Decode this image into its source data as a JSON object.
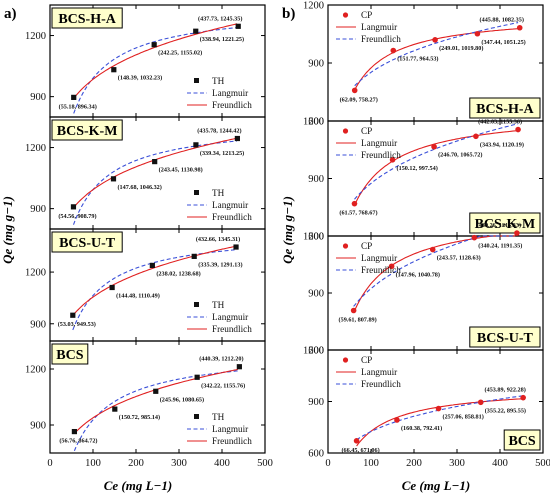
{
  "figure": {
    "panel_a_label": "a)",
    "panel_b_label": "b)",
    "xlabel_a": "Ce (mg L−1)",
    "xlabel_b": "Ce (mg L−1)",
    "ylabel_a": "Qe (mg g−1)",
    "ylabel_b": "Qe (mg g−1)"
  },
  "colors": {
    "langmuir": "#3a4fd8",
    "freundlich": "#e02020",
    "th_marker": "#111111",
    "cp_marker": "#e02020",
    "label_box": "#ffffcc"
  },
  "chart_data": [
    {
      "type": "scatter",
      "column": "a",
      "sample": "BCS-H-A",
      "marker_name": "TH",
      "x": [
        55.18,
        148.39,
        242.25,
        338.94,
        437.73
      ],
      "y": [
        896.34,
        1032.23,
        1155.02,
        1221.25,
        1245.35
      ],
      "point_labels": [
        "(55.18, 896.34)",
        "(148.39, 1032.23)",
        "(242.25, 1155.02)",
        "(338.94, 1221.25)",
        "(437.73, 1245.35)"
      ],
      "series": [
        {
          "name": "Langmuir",
          "style": "dashed",
          "color": "#3a4fd8"
        },
        {
          "name": "Freundlich",
          "style": "solid",
          "color": "#e02020"
        }
      ],
      "xlim": [
        0,
        500
      ],
      "ylim": [
        800,
        1350
      ],
      "yticks": [
        900,
        1200
      ],
      "legend": "bottom-right"
    },
    {
      "type": "scatter",
      "column": "a",
      "sample": "BCS-K-M",
      "marker_name": "TH",
      "x": [
        54.56,
        147.68,
        243.45,
        339.34,
        435.78
      ],
      "y": [
        908.79,
        1046.32,
        1130.98,
        1213.25,
        1244.42
      ],
      "point_labels": [
        "(54.56, 908.79)",
        "(147.68, 1046.32)",
        "(243.45, 1130.98)",
        "(339.34, 1213.25)",
        "(435.78, 1244.42)"
      ],
      "series": [
        {
          "name": "Langmuir",
          "style": "dashed",
          "color": "#3a4fd8"
        },
        {
          "name": "Freundlich",
          "style": "solid",
          "color": "#e02020"
        }
      ],
      "xlim": [
        0,
        500
      ],
      "ylim": [
        800,
        1350
      ],
      "yticks": [
        900,
        1200
      ],
      "legend": "bottom-right"
    },
    {
      "type": "scatter",
      "column": "a",
      "sample": "BCS-U-T",
      "marker_name": "TH",
      "x": [
        53.03,
        144.48,
        238.02,
        335.39,
        432.66
      ],
      "y": [
        949.53,
        1110.49,
        1238.68,
        1291.13,
        1345.31
      ],
      "point_labels": [
        "(53.03, 949.53)",
        "(144.48, 1110.49)",
        "(238.02, 1238.68)",
        "(335.39, 1291.13)",
        "(432.66, 1345.31)"
      ],
      "series": [
        {
          "name": "Langmuir",
          "style": "dashed",
          "color": "#3a4fd8"
        },
        {
          "name": "Freundlich",
          "style": "solid",
          "color": "#e02020"
        }
      ],
      "xlim": [
        0,
        500
      ],
      "ylim": [
        800,
        1450
      ],
      "yticks": [
        900,
        1200
      ],
      "legend": "bottom-right"
    },
    {
      "type": "scatter",
      "column": "a",
      "sample": "BCS",
      "marker_name": "TH",
      "x": [
        56.76,
        150.72,
        245.96,
        342.22,
        440.39
      ],
      "y": [
        864.72,
        985.14,
        1080.65,
        1155.76,
        1212.2
      ],
      "point_labels": [
        "(56.76, 864.72)",
        "(150.72, 985.14)",
        "(245.96, 1080.65)",
        "(342.22, 1155.76)",
        "(440.39, 1212.20)"
      ],
      "series": [
        {
          "name": "Langmuir",
          "style": "dashed",
          "color": "#3a4fd8"
        },
        {
          "name": "Freundlich",
          "style": "solid",
          "color": "#e02020"
        }
      ],
      "xlim": [
        0,
        500
      ],
      "ylim": [
        750,
        1350
      ],
      "yticks": [
        900,
        1200
      ],
      "legend": "bottom-right"
    },
    {
      "type": "scatter",
      "column": "b",
      "sample": "BCS-H-A",
      "marker_name": "CP",
      "x": [
        62.09,
        151.77,
        249.01,
        347.44,
        445.88
      ],
      "y": [
        758.27,
        964.53,
        1019.8,
        1051.25,
        1082.35
      ],
      "point_labels": [
        "(62.09, 758.27)",
        "(151.77, 964.53)",
        "(249.01, 1019.80)",
        "(347.44, 1051.25)",
        "(445.88, 1082.35)"
      ],
      "series": [
        {
          "name": "Langmuir",
          "style": "solid",
          "color": "#e02020"
        },
        {
          "name": "Freundlich",
          "style": "dashed",
          "color": "#3a4fd8"
        }
      ],
      "xlim": [
        0,
        500
      ],
      "ylim": [
        600,
        1200
      ],
      "yticks": [
        600,
        900,
        1200
      ],
      "legend": "top-left"
    },
    {
      "type": "scatter",
      "column": "b",
      "sample": "BCS-K-M",
      "marker_name": "CP",
      "x": [
        61.57,
        150.12,
        246.7,
        343.94,
        442.03
      ],
      "y": [
        768.67,
        997.54,
        1065.72,
        1120.19,
        1155.36
      ],
      "point_labels": [
        "(61.57, 768.67)",
        "(150.12, 997.54)",
        "(246.70, 1065.72)",
        "(343.94, 1120.19)",
        "(442.03, 1155.36)"
      ],
      "series": [
        {
          "name": "Langmuir",
          "style": "solid",
          "color": "#e02020"
        },
        {
          "name": "Freundlich",
          "style": "dashed",
          "color": "#3a4fd8"
        }
      ],
      "xlim": [
        0,
        500
      ],
      "ylim": [
        600,
        1200
      ],
      "yticks": [
        600,
        900,
        1200
      ],
      "legend": "top-left"
    },
    {
      "type": "scatter",
      "column": "b",
      "sample": "BCS-U-T",
      "marker_name": "CP",
      "x": [
        59.61,
        147.96,
        243.57,
        340.24,
        439.26
      ],
      "y": [
        807.89,
        1040.78,
        1128.63,
        1191.35,
        1215.33
      ],
      "point_labels": [
        "(59.61, 807.89)",
        "(147.96, 1040.78)",
        "(243.57, 1128.63)",
        "(340.24, 1191.35)",
        "(439.26, 1215.33)"
      ],
      "series": [
        {
          "name": "Langmuir",
          "style": "solid",
          "color": "#e02020"
        },
        {
          "name": "Freundlich",
          "style": "dashed",
          "color": "#3a4fd8"
        }
      ],
      "xlim": [
        0,
        500
      ],
      "ylim": [
        600,
        1200
      ],
      "yticks": [
        600,
        900,
        1200
      ],
      "legend": "top-left"
    },
    {
      "type": "scatter",
      "column": "b",
      "sample": "BCS",
      "marker_name": "CP",
      "x": [
        66.45,
        160.38,
        257.06,
        355.22,
        453.89
      ],
      "y": [
        671.06,
        792.41,
        858.81,
        895.55,
        922.28
      ],
      "point_labels": [
        "(66.45, 671.06)",
        "(160.38, 792.41)",
        "(257.06, 858.81)",
        "(355.22, 895.55)",
        "(453.89, 922.28)"
      ],
      "series": [
        {
          "name": "Langmuir",
          "style": "solid",
          "color": "#e02020"
        },
        {
          "name": "Freundlich",
          "style": "dashed",
          "color": "#3a4fd8"
        }
      ],
      "xlim": [
        0,
        500
      ],
      "ylim": [
        600,
        1200
      ],
      "yticks": [
        600,
        900,
        1200
      ],
      "legend": "top-left"
    }
  ],
  "xticks": [
    0,
    100,
    200,
    300,
    400,
    500
  ]
}
